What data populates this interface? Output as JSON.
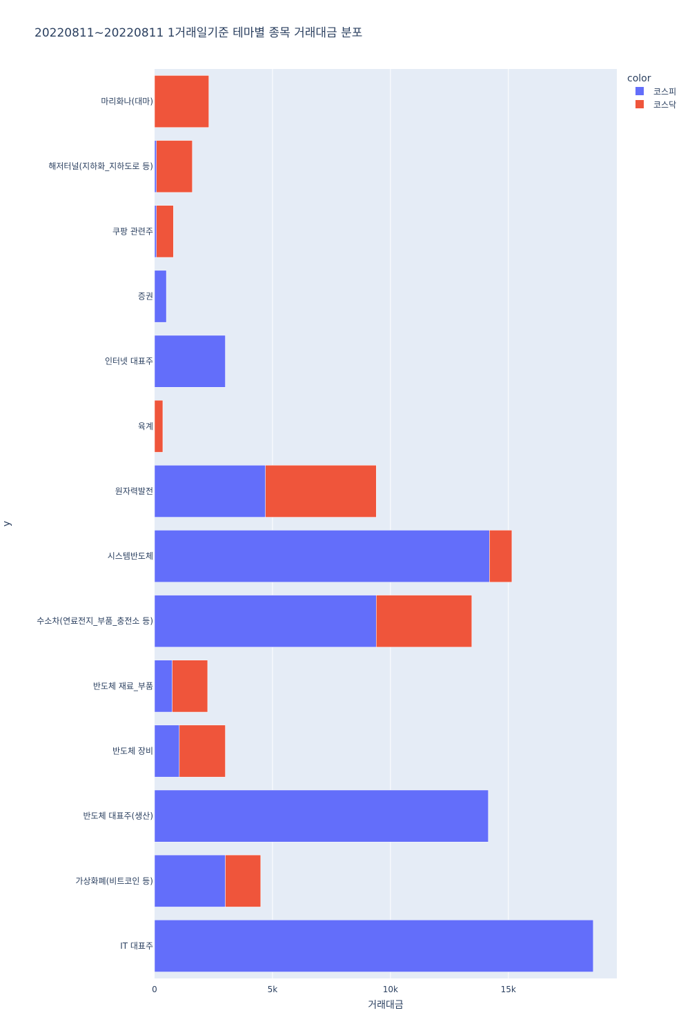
{
  "chart_data": {
    "type": "bar",
    "orientation": "horizontal",
    "barmode": "stack",
    "title": "20220811~20220811 1거래일기준 테마별 종목 거래대금 분포",
    "xlabel": "거래대금",
    "ylabel": "y",
    "xlim": [
      0,
      19600
    ],
    "x_ticks": [
      {
        "value": 0,
        "label": "0"
      },
      {
        "value": 5000,
        "label": "5k"
      },
      {
        "value": 10000,
        "label": "10k"
      },
      {
        "value": 15000,
        "label": "15k"
      }
    ],
    "grid": true,
    "legend": {
      "title": "color",
      "position": "top-right"
    },
    "categories": [
      "마리화나(대마)",
      "해저터널(지하화_지하도로 등)",
      "쿠팡 관련주",
      "증권",
      "인터넷 대표주",
      "육계",
      "원자력발전",
      "시스템반도체",
      "수소차(연료전지_부품_충전소 등)",
      "반도체 재료_부품",
      "반도체 장비",
      "반도체 대표주(생산)",
      "가상화폐(비트코인 등)",
      "IT 대표주"
    ],
    "series": [
      {
        "name": "코스피",
        "color": "#636efa",
        "values": [
          0,
          80,
          80,
          500,
          3000,
          0,
          4700,
          14200,
          9400,
          750,
          1050,
          14150,
          3000,
          18600
        ]
      },
      {
        "name": "코스닥",
        "color": "#ef553b",
        "values": [
          2300,
          1520,
          720,
          0,
          0,
          350,
          4700,
          950,
          4050,
          1500,
          1950,
          0,
          1500,
          0
        ]
      }
    ]
  }
}
